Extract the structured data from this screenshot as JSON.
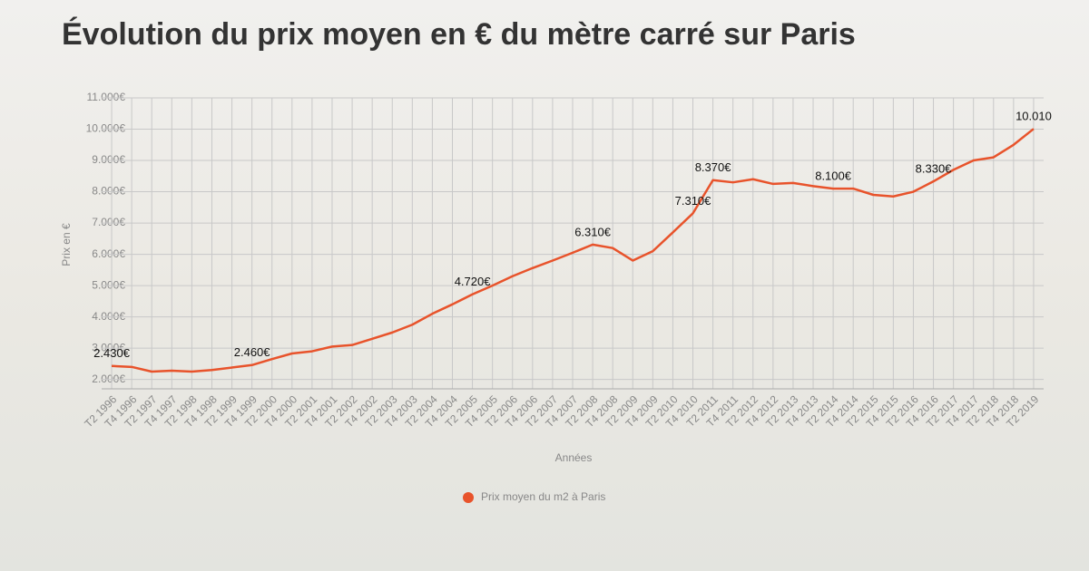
{
  "chart_data": {
    "type": "line",
    "title": "Évolution du prix moyen en € du mètre carré sur Paris",
    "x_label": "Années",
    "y_label": "Prix en €",
    "categories": [
      "T2 1996",
      "T4 1996",
      "T2 1997",
      "T4 1997",
      "T2 1998",
      "T4 1998",
      "T2 1999",
      "T4 1999",
      "T2 2000",
      "T4 2000",
      "T2 2001",
      "T4 2001",
      "T2 2002",
      "T4 2002",
      "T2 2003",
      "T4 2003",
      "T2 2004",
      "T4 2004",
      "T2 2005",
      "T4 2005",
      "T2 2006",
      "T4 2006",
      "T2 2007",
      "T4 2007",
      "T2 2008",
      "T4 2008",
      "T2 2009",
      "T4 2009",
      "T2 2010",
      "T4 2010",
      "T2 2011",
      "T4 2011",
      "T2 2012",
      "T4 2012",
      "T2 2013",
      "T4 2013",
      "T2 2014",
      "T4 2014",
      "T2 2015",
      "T4 2015",
      "T2 2016",
      "T4 2016",
      "T2 2017",
      "T4 2017",
      "T2 2018",
      "T4 2018",
      "T2 2019"
    ],
    "series": [
      {
        "name": "Prix moyen du m2 à Paris",
        "color": "#e8532b",
        "values": [
          2430,
          2400,
          2250,
          2280,
          2250,
          2300,
          2380,
          2460,
          2650,
          2830,
          2900,
          3050,
          3100,
          3300,
          3500,
          3750,
          4100,
          4400,
          4720,
          5000,
          5300,
          5560,
          5800,
          6050,
          6310,
          6200,
          5800,
          6100,
          6700,
          7310,
          8370,
          8300,
          8400,
          8250,
          8280,
          8180,
          8100,
          8100,
          7900,
          7850,
          8000,
          8330,
          8700,
          9000,
          9100,
          9500,
          10010
        ],
        "value_labels": [
          "2.430€",
          null,
          null,
          null,
          null,
          null,
          null,
          "2.460€",
          null,
          null,
          null,
          null,
          null,
          null,
          null,
          null,
          null,
          null,
          "4.720€",
          null,
          null,
          null,
          null,
          null,
          "6.310€",
          null,
          null,
          null,
          null,
          "7.310€",
          "8.370€",
          null,
          null,
          null,
          null,
          null,
          "8.100€",
          null,
          null,
          null,
          null,
          "8.330€",
          null,
          null,
          null,
          null,
          "10.010"
        ]
      }
    ],
    "ylim": [
      1700,
      11000
    ],
    "yticks": [
      {
        "value": 2000,
        "label": "2.000€"
      },
      {
        "value": 3000,
        "label": "3.000€"
      },
      {
        "value": 4000,
        "label": "4.000€"
      },
      {
        "value": 5000,
        "label": "5.000€"
      },
      {
        "value": 6000,
        "label": "6.000€"
      },
      {
        "value": 7000,
        "label": "7.000€"
      },
      {
        "value": 8000,
        "label": "8.000€"
      },
      {
        "value": 9000,
        "label": "9.000€"
      },
      {
        "value": 10000,
        "label": "10.000€"
      },
      {
        "value": 11000,
        "label": "11.000€"
      }
    ],
    "grid": true,
    "legend": "bottom"
  }
}
